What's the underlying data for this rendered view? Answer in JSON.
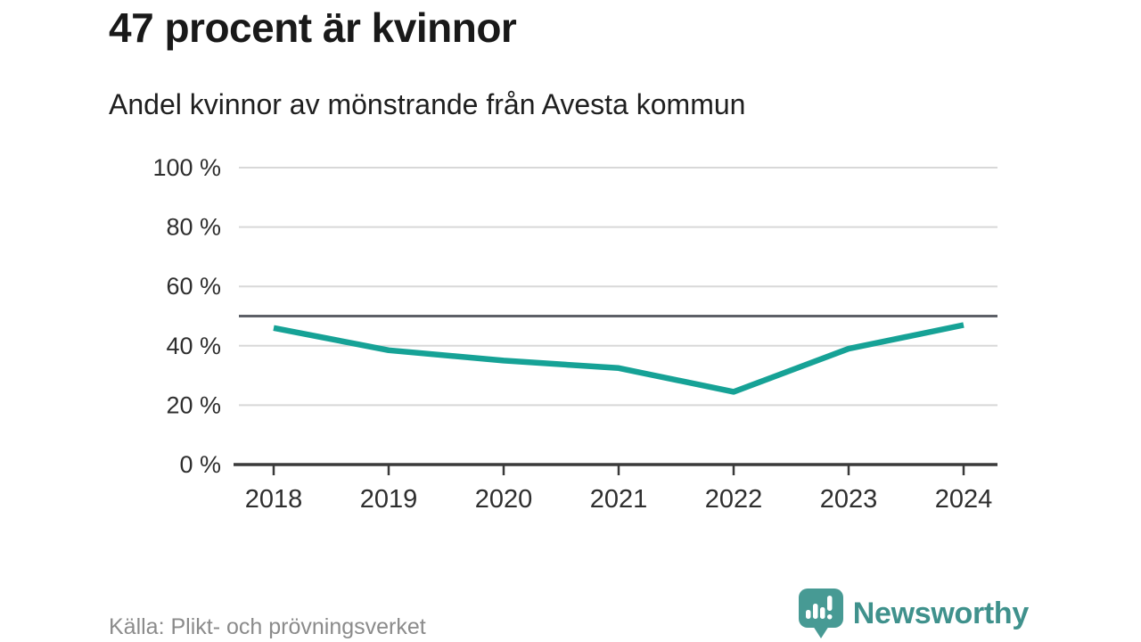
{
  "header": {
    "title": "47 procent är kvinnor",
    "subtitle": "Andel kvinnor av mönstrande från Avesta kommun"
  },
  "chart_data": {
    "type": "line",
    "title": "47 procent är kvinnor",
    "subtitle": "Andel kvinnor av mönstrande från Avesta kommun",
    "x": [
      2018,
      2019,
      2020,
      2021,
      2022,
      2023,
      2024
    ],
    "series": [
      {
        "name": "Andel kvinnor av mönstrande",
        "values": [
          46,
          38.5,
          35,
          32.5,
          24.5,
          39,
          47
        ]
      }
    ],
    "unit": "%",
    "ylim": [
      0,
      100
    ],
    "yticks": [
      0,
      20,
      40,
      60,
      80,
      100
    ],
    "ytick_suffix": " %",
    "reference_line": 50,
    "grid": true,
    "legend": false,
    "colors": {
      "line": "#16a296",
      "reference_line": "#5d6067",
      "gridline": "#d8d8d8",
      "axis": "#3a3a3a",
      "tick_label": "#2e2e2e"
    }
  },
  "footer": {
    "source": "Källa: Plikt- och prövningsverket",
    "brand": {
      "name": "Newsworthy",
      "logo_icon": "newsworthy-speech-bubble-bar-chart-icon",
      "text_color": "#3f918c",
      "icon_color": "#479a94"
    }
  }
}
